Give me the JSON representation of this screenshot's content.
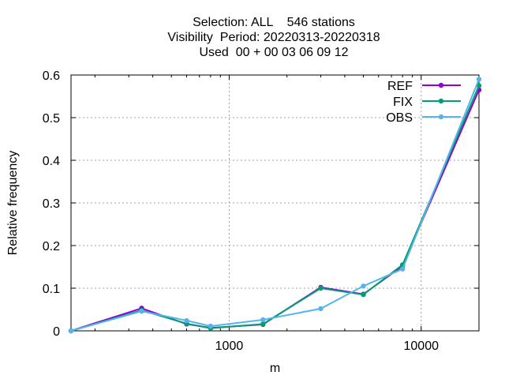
{
  "chart_data": {
    "type": "line",
    "title_lines": [
      "Selection: ALL    546 stations",
      "Visibility  Period: 20220313-20220318",
      "Used  00 + 00 03 06 09 12"
    ],
    "xlabel": "m",
    "ylabel": "Relative frequency",
    "x_scale": "log",
    "xlim": [
      150,
      20000
    ],
    "ylim": [
      0,
      0.6
    ],
    "x_ticks": [
      1000,
      10000
    ],
    "x_tick_labels": [
      "1000",
      "10000"
    ],
    "y_ticks": [
      0,
      0.1,
      0.2,
      0.3,
      0.4,
      0.5,
      0.6
    ],
    "y_tick_labels": [
      "0",
      "0.1",
      "0.2",
      "0.3",
      "0.4",
      "0.5",
      "0.6"
    ],
    "grid": true,
    "legend_position": "top-right",
    "x": [
      150,
      350,
      600,
      800,
      1500,
      3000,
      5000,
      8000,
      20000
    ],
    "series": [
      {
        "name": "REF",
        "color": "#9400d3",
        "values": [
          0.0,
          0.053,
          0.016,
          0.007,
          0.015,
          0.102,
          0.086,
          0.152,
          0.565
        ]
      },
      {
        "name": "FIX",
        "color": "#009e73",
        "values": [
          0.0,
          0.048,
          0.017,
          0.006,
          0.016,
          0.1,
          0.085,
          0.155,
          0.575
        ]
      },
      {
        "name": "OBS",
        "color": "#56b4e9",
        "values": [
          0.0,
          0.046,
          0.024,
          0.011,
          0.026,
          0.052,
          0.105,
          0.145,
          0.59
        ]
      }
    ]
  }
}
